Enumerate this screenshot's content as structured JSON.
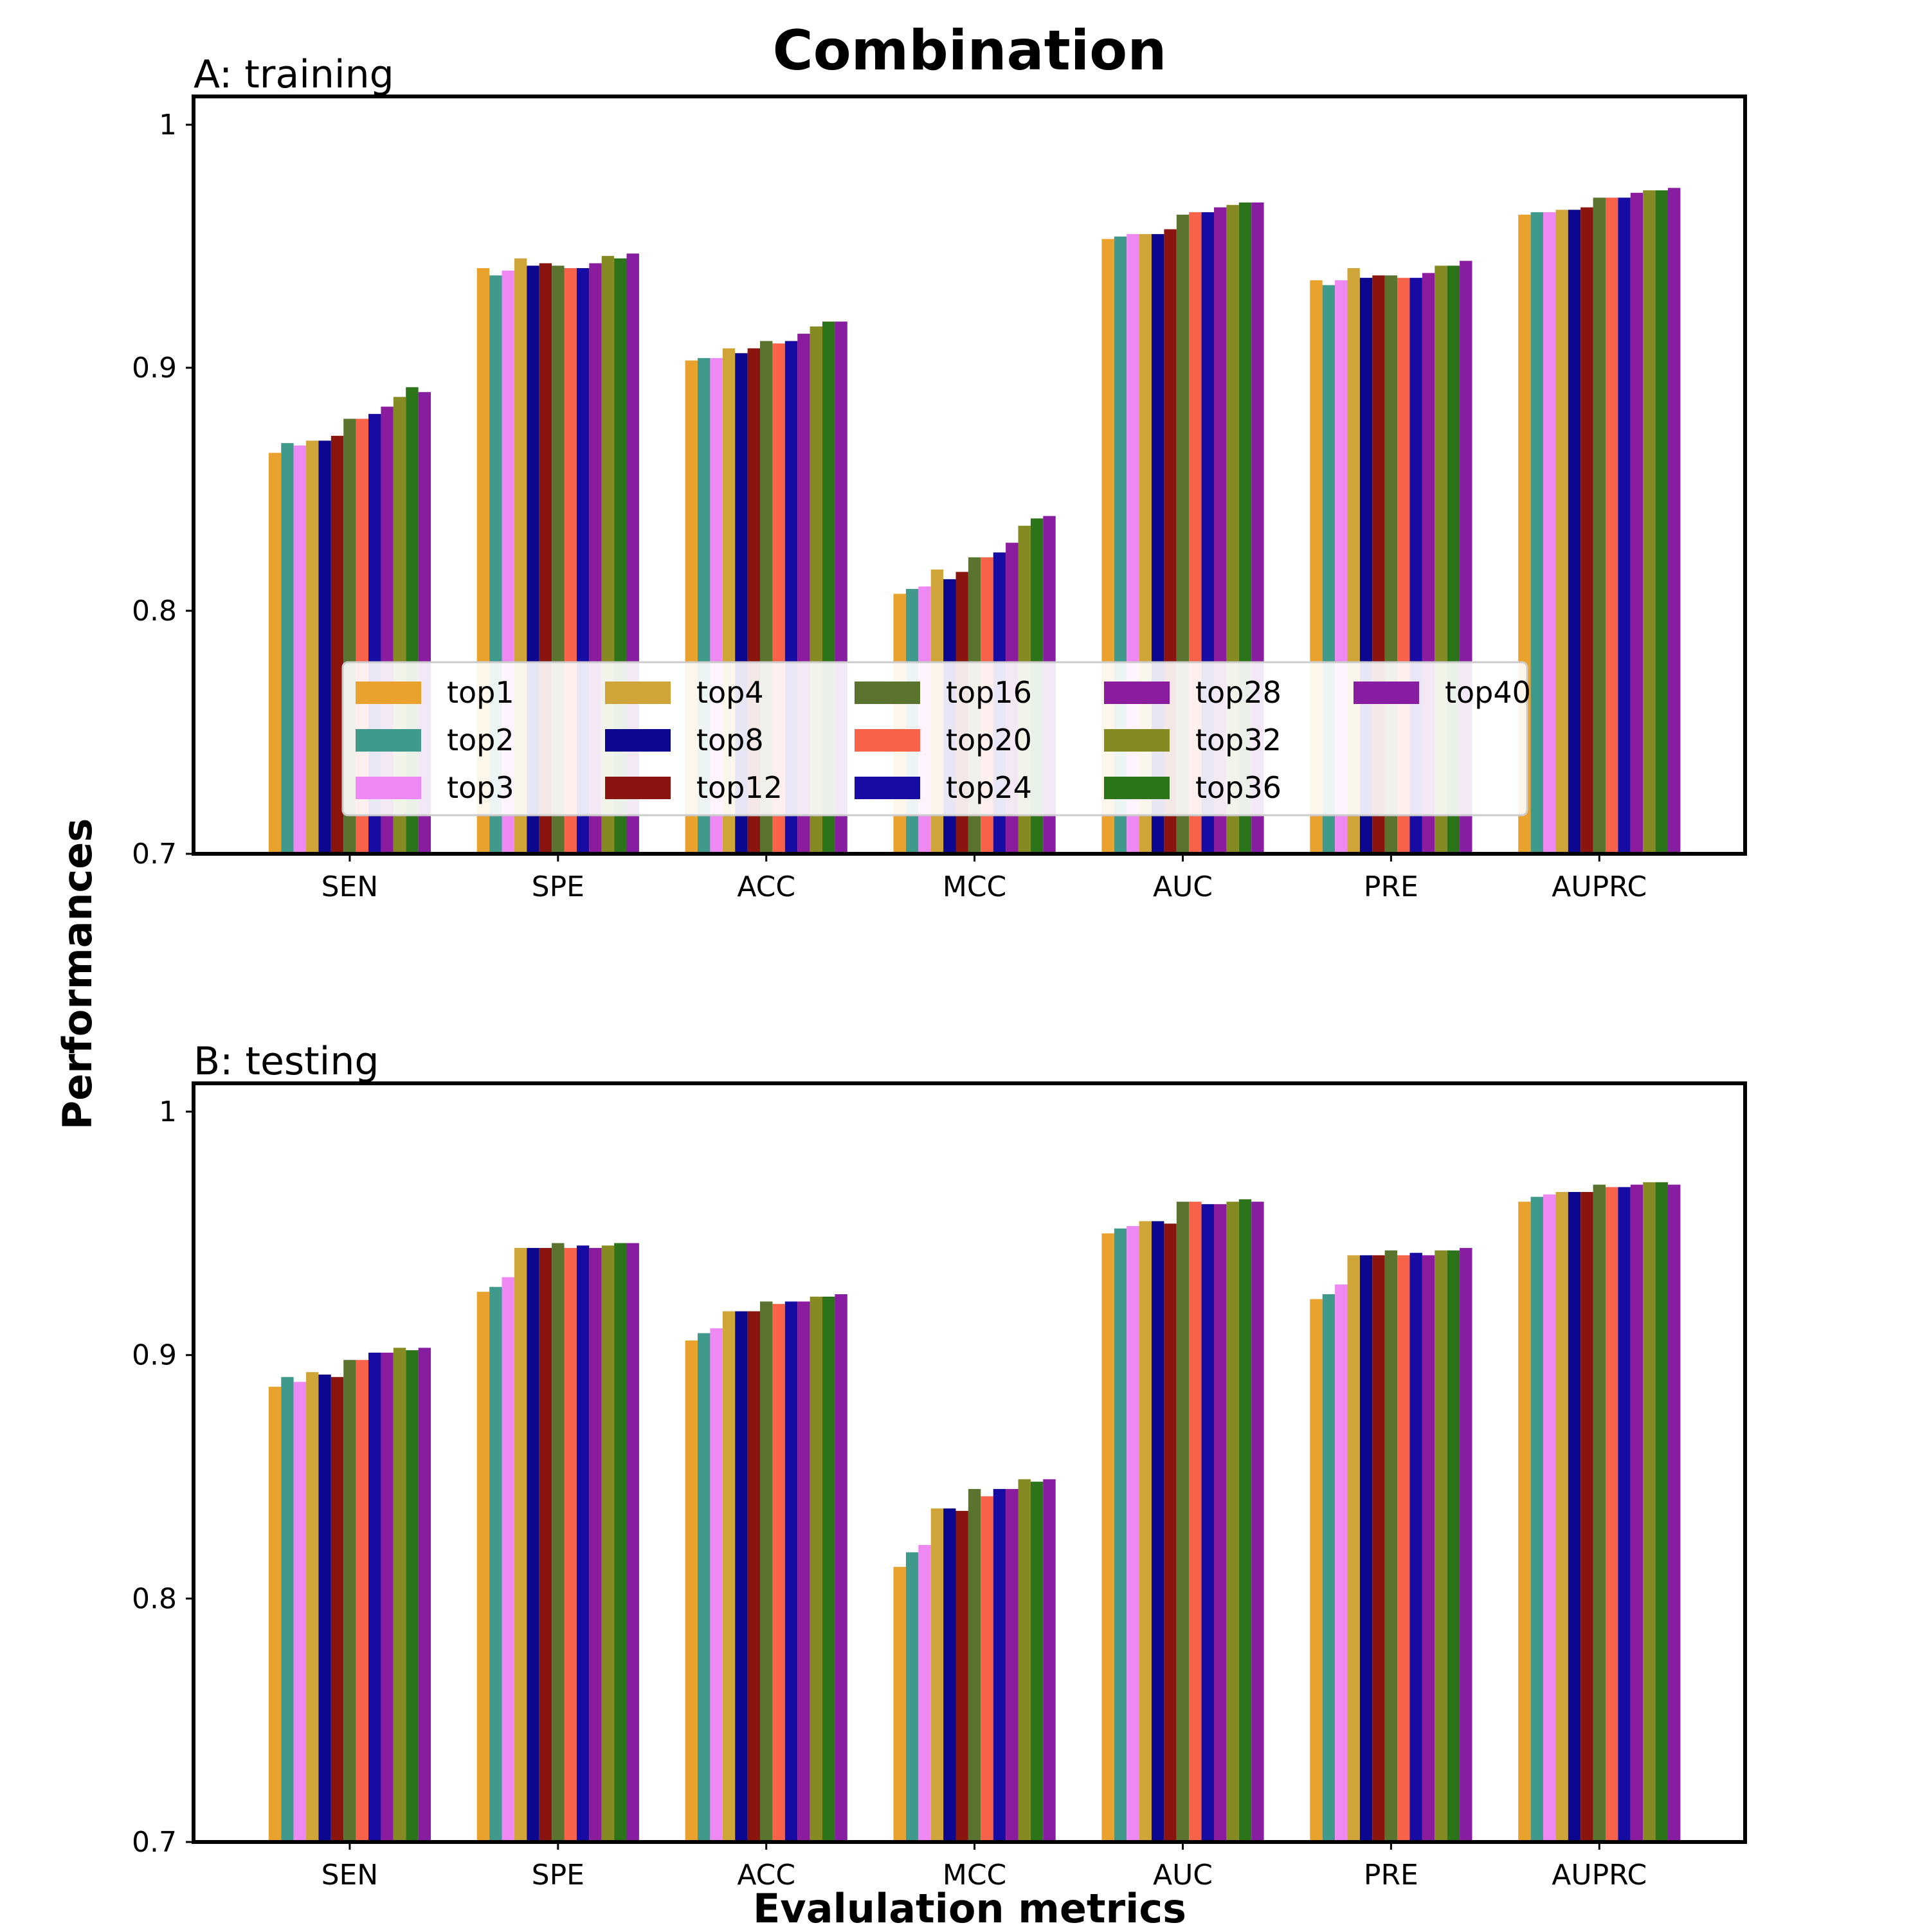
{
  "title": "Combination",
  "xlabel": "Evalulation metrics",
  "ylabel": "Performances",
  "series_colors": [
    "#eaa22f",
    "#3f9a8c",
    "#ee88f2",
    "#cfa53a",
    "#0b088f",
    "#8a150e",
    "#5a7430",
    "#f86249",
    "#160ba3",
    "#8a1c9d",
    "#858a22",
    "#2b7419",
    "#871da0"
  ],
  "legend": {
    "placement": "lower-center",
    "columns": 5,
    "entries": [
      "top1",
      "top2",
      "top3",
      "top4",
      "top8",
      "top12",
      "top16",
      "top20",
      "top24",
      "top28",
      "top32",
      "top36",
      "top40"
    ]
  },
  "chart_data": [
    {
      "type": "bar",
      "title": "A: training",
      "categories": [
        "SEN",
        "SPE",
        "ACC",
        "MCC",
        "AUC",
        "PRE",
        "AUPRC"
      ],
      "ylim": [
        0.7,
        1.0
      ],
      "yticks": [
        0.7,
        0.8,
        0.9,
        1.0
      ],
      "ytick_labels": [
        "0.7",
        "0.8",
        "0.9",
        "1"
      ],
      "series": [
        {
          "name": "top1",
          "values": [
            0.865,
            0.941,
            0.903,
            0.807,
            0.953,
            0.936,
            0.963
          ]
        },
        {
          "name": "top2",
          "values": [
            0.869,
            0.938,
            0.904,
            0.809,
            0.954,
            0.934,
            0.964
          ]
        },
        {
          "name": "top3",
          "values": [
            0.868,
            0.94,
            0.904,
            0.81,
            0.955,
            0.936,
            0.964
          ]
        },
        {
          "name": "top4",
          "values": [
            0.87,
            0.945,
            0.908,
            0.817,
            0.955,
            0.941,
            0.965
          ]
        },
        {
          "name": "top8",
          "values": [
            0.87,
            0.942,
            0.906,
            0.813,
            0.955,
            0.937,
            0.965
          ]
        },
        {
          "name": "top12",
          "values": [
            0.872,
            0.943,
            0.908,
            0.816,
            0.957,
            0.938,
            0.966
          ]
        },
        {
          "name": "top16",
          "values": [
            0.879,
            0.942,
            0.911,
            0.822,
            0.963,
            0.938,
            0.97
          ]
        },
        {
          "name": "top20",
          "values": [
            0.879,
            0.941,
            0.91,
            0.822,
            0.964,
            0.937,
            0.97
          ]
        },
        {
          "name": "top24",
          "values": [
            0.881,
            0.941,
            0.911,
            0.824,
            0.964,
            0.937,
            0.97
          ]
        },
        {
          "name": "top28",
          "values": [
            0.884,
            0.943,
            0.914,
            0.828,
            0.966,
            0.939,
            0.972
          ]
        },
        {
          "name": "top32",
          "values": [
            0.888,
            0.946,
            0.917,
            0.835,
            0.967,
            0.942,
            0.973
          ]
        },
        {
          "name": "top36",
          "values": [
            0.892,
            0.945,
            0.919,
            0.838,
            0.968,
            0.942,
            0.973
          ]
        },
        {
          "name": "top40",
          "values": [
            0.89,
            0.947,
            0.919,
            0.839,
            0.968,
            0.944,
            0.974
          ]
        }
      ]
    },
    {
      "type": "bar",
      "title": "B: testing",
      "categories": [
        "SEN",
        "SPE",
        "ACC",
        "MCC",
        "AUC",
        "PRE",
        "AUPRC"
      ],
      "ylim": [
        0.7,
        1.0
      ],
      "yticks": [
        0.7,
        0.8,
        0.9,
        1.0
      ],
      "ytick_labels": [
        "0.7",
        "0.8",
        "0.9",
        "1"
      ],
      "series": [
        {
          "name": "top1",
          "values": [
            0.887,
            0.926,
            0.906,
            0.813,
            0.95,
            0.923,
            0.963
          ]
        },
        {
          "name": "top2",
          "values": [
            0.891,
            0.928,
            0.909,
            0.819,
            0.952,
            0.925,
            0.965
          ]
        },
        {
          "name": "top3",
          "values": [
            0.889,
            0.932,
            0.911,
            0.822,
            0.953,
            0.929,
            0.966
          ]
        },
        {
          "name": "top4",
          "values": [
            0.893,
            0.944,
            0.918,
            0.837,
            0.955,
            0.941,
            0.967
          ]
        },
        {
          "name": "top8",
          "values": [
            0.892,
            0.944,
            0.918,
            0.837,
            0.955,
            0.941,
            0.967
          ]
        },
        {
          "name": "top12",
          "values": [
            0.891,
            0.944,
            0.918,
            0.836,
            0.954,
            0.941,
            0.967
          ]
        },
        {
          "name": "top16",
          "values": [
            0.898,
            0.946,
            0.922,
            0.845,
            0.963,
            0.943,
            0.97
          ]
        },
        {
          "name": "top20",
          "values": [
            0.898,
            0.944,
            0.921,
            0.842,
            0.963,
            0.941,
            0.969
          ]
        },
        {
          "name": "top24",
          "values": [
            0.901,
            0.945,
            0.922,
            0.845,
            0.962,
            0.942,
            0.969
          ]
        },
        {
          "name": "top28",
          "values": [
            0.901,
            0.944,
            0.922,
            0.845,
            0.962,
            0.941,
            0.97
          ]
        },
        {
          "name": "top32",
          "values": [
            0.903,
            0.945,
            0.924,
            0.849,
            0.963,
            0.943,
            0.971
          ]
        },
        {
          "name": "top36",
          "values": [
            0.902,
            0.946,
            0.924,
            0.848,
            0.964,
            0.943,
            0.971
          ]
        },
        {
          "name": "top40",
          "values": [
            0.903,
            0.946,
            0.925,
            0.849,
            0.963,
            0.944,
            0.97
          ]
        }
      ]
    }
  ]
}
